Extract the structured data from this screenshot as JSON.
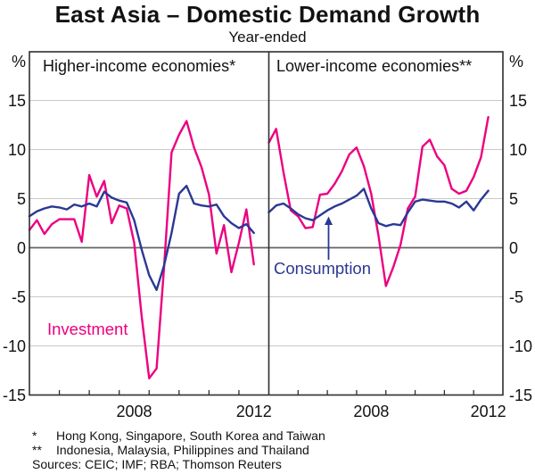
{
  "chart_data": {
    "type": "line",
    "title": "East Asia – Domestic Demand Growth",
    "subtitle": "Year-ended",
    "unit_label": "%",
    "y_axis": {
      "min": -15,
      "max": 20,
      "tick_labels": [
        15,
        10,
        5,
        0,
        -5,
        -10,
        -15
      ],
      "grid": true
    },
    "x_axis": {
      "start_year": 2005,
      "end_year": 2012,
      "frequency": "quarterly",
      "labeled_years": [
        "2008",
        "2012"
      ]
    },
    "series_annotations": {
      "investment_label": "Investment",
      "consumption_label": "Consumption"
    },
    "panels": [
      {
        "title": "Higher-income economies*",
        "year_labels": [
          "2008",
          "2012"
        ],
        "series": [
          {
            "name": "Investment",
            "color": "#ec0080",
            "values": [
              1.8,
              2.8,
              1.4,
              2.4,
              2.9,
              2.9,
              2.9,
              0.6,
              7.4,
              5.2,
              6.8,
              2.5,
              4.3,
              4.0,
              0.5,
              -7.0,
              -13.3,
              -12.3,
              -2.0,
              9.7,
              11.5,
              12.9,
              10.2,
              8.2,
              5.4,
              -0.6,
              2.3,
              -2.5,
              0.5,
              3.9,
              -1.7
            ]
          },
          {
            "name": "Consumption",
            "color": "#2b3894",
            "values": [
              3.2,
              3.7,
              4.0,
              4.2,
              4.1,
              3.9,
              4.4,
              4.2,
              4.5,
              4.2,
              5.7,
              5.1,
              4.8,
              4.6,
              2.8,
              -0.2,
              -2.8,
              -4.3,
              -1.8,
              1.5,
              5.5,
              6.3,
              4.5,
              4.3,
              4.2,
              4.4,
              3.2,
              2.5,
              2.0,
              2.4,
              1.5
            ]
          }
        ]
      },
      {
        "title": "Lower-income economies**",
        "year_labels": [
          "2008",
          "2012"
        ],
        "series": [
          {
            "name": "Investment",
            "color": "#ec0080",
            "values": [
              10.7,
              12.1,
              7.7,
              3.8,
              3.2,
              2.0,
              2.1,
              5.4,
              5.5,
              6.5,
              7.8,
              9.5,
              10.2,
              8.3,
              5.5,
              1.2,
              -3.9,
              -2.0,
              0.3,
              4.0,
              5.2,
              10.3,
              11.0,
              9.3,
              8.4,
              6.0,
              5.5,
              5.8,
              7.2,
              9.2,
              13.3
            ]
          },
          {
            "name": "Consumption",
            "color": "#2b3894",
            "values": [
              3.6,
              4.3,
              4.5,
              4.0,
              3.4,
              3.0,
              2.8,
              3.3,
              3.8,
              4.2,
              4.5,
              4.9,
              5.3,
              6.0,
              4.0,
              2.5,
              2.2,
              2.4,
              2.3,
              3.6,
              4.7,
              4.9,
              4.8,
              4.7,
              4.7,
              4.5,
              4.1,
              4.7,
              3.8,
              4.9,
              5.8
            ]
          }
        ]
      }
    ]
  },
  "footnotes": [
    {
      "marker": "*",
      "text": "Hong Kong, Singapore, South Korea and Taiwan"
    },
    {
      "marker": "**",
      "text": "Indonesia, Malaysia, Philippines and Thailand"
    },
    {
      "marker": "",
      "text": "Sources: CEIC; IMF; RBA; Thomson Reuters"
    }
  ]
}
